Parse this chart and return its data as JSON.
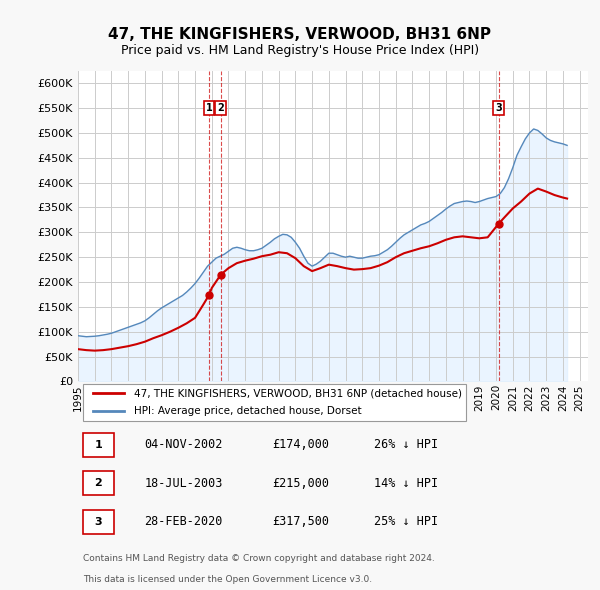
{
  "title": "47, THE KINGFISHERS, VERWOOD, BH31 6NP",
  "subtitle": "Price paid vs. HM Land Registry's House Price Index (HPI)",
  "legend_red": "47, THE KINGFISHERS, VERWOOD, BH31 6NP (detached house)",
  "legend_blue": "HPI: Average price, detached house, Dorset",
  "footer_line1": "Contains HM Land Registry data © Crown copyright and database right 2024.",
  "footer_line2": "This data is licensed under the Open Government Licence v3.0.",
  "sales": [
    {
      "num": 1,
      "date": "04-NOV-2002",
      "price": 174000,
      "pct": "26%",
      "dir": "↓",
      "year_x": 2002.84
    },
    {
      "num": 2,
      "date": "18-JUL-2003",
      "price": 215000,
      "pct": "14%",
      "dir": "↓",
      "year_x": 2003.54
    },
    {
      "num": 3,
      "date": "28-FEB-2020",
      "price": 317500,
      "pct": "25%",
      "dir": "↓",
      "year_x": 2020.16
    }
  ],
  "hpi_x": [
    1995.0,
    1995.25,
    1995.5,
    1995.75,
    1996.0,
    1996.25,
    1996.5,
    1996.75,
    1997.0,
    1997.25,
    1997.5,
    1997.75,
    1998.0,
    1998.25,
    1998.5,
    1998.75,
    1999.0,
    1999.25,
    1999.5,
    1999.75,
    2000.0,
    2000.25,
    2000.5,
    2000.75,
    2001.0,
    2001.25,
    2001.5,
    2001.75,
    2002.0,
    2002.25,
    2002.5,
    2002.75,
    2003.0,
    2003.25,
    2003.5,
    2003.75,
    2004.0,
    2004.25,
    2004.5,
    2004.75,
    2005.0,
    2005.25,
    2005.5,
    2005.75,
    2006.0,
    2006.25,
    2006.5,
    2006.75,
    2007.0,
    2007.25,
    2007.5,
    2007.75,
    2008.0,
    2008.25,
    2008.5,
    2008.75,
    2009.0,
    2009.25,
    2009.5,
    2009.75,
    2010.0,
    2010.25,
    2010.5,
    2010.75,
    2011.0,
    2011.25,
    2011.5,
    2011.75,
    2012.0,
    2012.25,
    2012.5,
    2012.75,
    2013.0,
    2013.25,
    2013.5,
    2013.75,
    2014.0,
    2014.25,
    2014.5,
    2014.75,
    2015.0,
    2015.25,
    2015.5,
    2015.75,
    2016.0,
    2016.25,
    2016.5,
    2016.75,
    2017.0,
    2017.25,
    2017.5,
    2017.75,
    2018.0,
    2018.25,
    2018.5,
    2018.75,
    2019.0,
    2019.25,
    2019.5,
    2019.75,
    2020.0,
    2020.25,
    2020.5,
    2020.75,
    2021.0,
    2021.25,
    2021.5,
    2021.75,
    2022.0,
    2022.25,
    2022.5,
    2022.75,
    2023.0,
    2023.25,
    2023.5,
    2023.75,
    2024.0,
    2024.25
  ],
  "hpi_y": [
    92000,
    91000,
    90000,
    90500,
    91000,
    92000,
    93500,
    95000,
    97000,
    100000,
    103000,
    106000,
    109000,
    112000,
    115000,
    118000,
    122000,
    128000,
    135000,
    142000,
    148000,
    153000,
    158000,
    163000,
    168000,
    173000,
    180000,
    188000,
    197000,
    208000,
    220000,
    232000,
    240000,
    248000,
    252000,
    256000,
    262000,
    268000,
    270000,
    268000,
    265000,
    263000,
    263000,
    265000,
    268000,
    274000,
    280000,
    287000,
    292000,
    296000,
    295000,
    290000,
    280000,
    268000,
    252000,
    238000,
    232000,
    236000,
    242000,
    250000,
    258000,
    258000,
    255000,
    252000,
    250000,
    252000,
    250000,
    248000,
    248000,
    250000,
    252000,
    253000,
    255000,
    260000,
    265000,
    272000,
    280000,
    288000,
    295000,
    300000,
    305000,
    310000,
    315000,
    318000,
    322000,
    328000,
    334000,
    340000,
    347000,
    353000,
    358000,
    360000,
    362000,
    363000,
    362000,
    360000,
    362000,
    365000,
    368000,
    370000,
    372000,
    378000,
    390000,
    408000,
    430000,
    455000,
    472000,
    488000,
    500000,
    508000,
    505000,
    498000,
    490000,
    485000,
    482000,
    480000,
    478000,
    475000
  ],
  "price_paid_x": [
    1995.0,
    1995.5,
    1996.0,
    1996.5,
    1997.0,
    1997.5,
    1998.0,
    1998.5,
    1999.0,
    1999.5,
    2000.0,
    2000.5,
    2001.0,
    2001.5,
    2002.0,
    2002.5,
    2002.84,
    2003.0,
    2003.54,
    2004.0,
    2004.5,
    2005.0,
    2005.5,
    2006.0,
    2006.5,
    2007.0,
    2007.5,
    2008.0,
    2008.5,
    2009.0,
    2009.5,
    2010.0,
    2010.5,
    2011.0,
    2011.5,
    2012.0,
    2012.5,
    2013.0,
    2013.5,
    2014.0,
    2014.5,
    2015.0,
    2015.5,
    2016.0,
    2016.5,
    2017.0,
    2017.5,
    2018.0,
    2018.5,
    2019.0,
    2019.5,
    2020.16,
    2020.5,
    2021.0,
    2021.5,
    2022.0,
    2022.5,
    2023.0,
    2023.5,
    2024.0,
    2024.25
  ],
  "price_paid_y": [
    65000,
    63000,
    62000,
    63000,
    65000,
    68000,
    71000,
    75000,
    80000,
    87000,
    93000,
    100000,
    108000,
    117000,
    128000,
    155000,
    174000,
    188000,
    215000,
    228000,
    238000,
    243000,
    247000,
    252000,
    255000,
    260000,
    258000,
    248000,
    232000,
    222000,
    228000,
    235000,
    232000,
    228000,
    225000,
    226000,
    228000,
    233000,
    240000,
    250000,
    258000,
    263000,
    268000,
    272000,
    278000,
    285000,
    290000,
    292000,
    290000,
    288000,
    290000,
    317500,
    330000,
    348000,
    362000,
    378000,
    388000,
    382000,
    375000,
    370000,
    368000
  ],
  "bg_color": "#f8f8f8",
  "plot_bg_color": "#ffffff",
  "grid_color": "#cccccc",
  "red_color": "#cc0000",
  "blue_color": "#5588bb",
  "blue_fill_color": "#ddeeff",
  "ylim": [
    0,
    625000
  ],
  "xlim": [
    1995,
    2025.5
  ],
  "yticks": [
    0,
    50000,
    100000,
    150000,
    200000,
    250000,
    300000,
    350000,
    400000,
    450000,
    500000,
    550000,
    600000
  ],
  "xticks": [
    1995,
    1996,
    1997,
    1998,
    1999,
    2000,
    2001,
    2002,
    2003,
    2004,
    2005,
    2006,
    2007,
    2008,
    2009,
    2010,
    2011,
    2012,
    2013,
    2014,
    2015,
    2016,
    2017,
    2018,
    2019,
    2020,
    2021,
    2022,
    2023,
    2024,
    2025
  ]
}
